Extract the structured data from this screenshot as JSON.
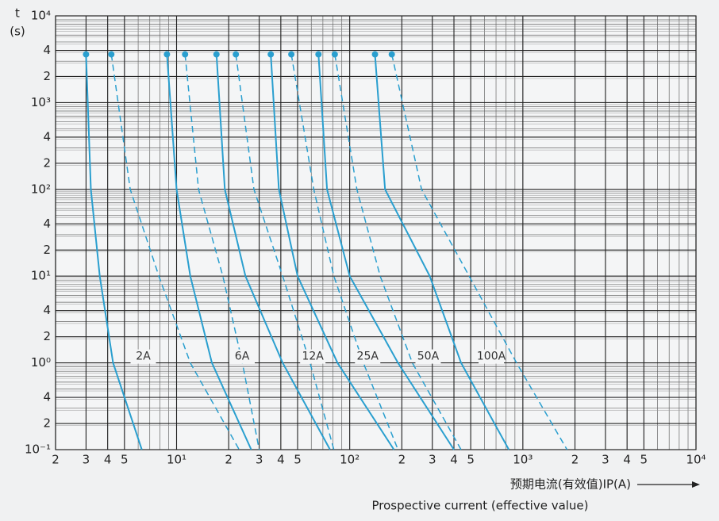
{
  "chart_data": {
    "type": "line",
    "log_x": true,
    "log_y": true,
    "grid": true,
    "y_label": "t",
    "y_unit": "(s)",
    "x_label": "预期电流(有效值)IP(A)",
    "x_label_2": "Prospective current (effective value)",
    "xlim": [
      2,
      10000
    ],
    "ylim": [
      0.1,
      10000
    ],
    "xticks": [
      2,
      3,
      4,
      5,
      {
        "value": 10,
        "label": "10¹"
      },
      {
        "value": 20,
        "label": "2"
      },
      {
        "value": 30,
        "label": "3"
      },
      {
        "value": 40,
        "label": "4"
      },
      {
        "value": 50,
        "label": "5"
      },
      {
        "value": 100,
        "label": "10²"
      },
      {
        "value": 200,
        "label": "2"
      },
      {
        "value": 300,
        "label": "3"
      },
      {
        "value": 400,
        "label": "4"
      },
      {
        "value": 500,
        "label": "5"
      },
      {
        "value": 1000,
        "label": "10³"
      },
      {
        "value": 2000,
        "label": "2"
      },
      {
        "value": 3000,
        "label": "3"
      },
      {
        "value": 4000,
        "label": "4"
      },
      {
        "value": 5000,
        "label": "5"
      },
      {
        "value": 10000,
        "label": "10⁴"
      }
    ],
    "yticks": [
      {
        "value": 10000,
        "label": "10⁴"
      },
      {
        "value": 4000,
        "label": "4"
      },
      {
        "value": 2000,
        "label": "2"
      },
      {
        "value": 1000,
        "label": "10³"
      },
      {
        "value": 400,
        "label": "4"
      },
      {
        "value": 200,
        "label": "2"
      },
      {
        "value": 100,
        "label": "10²"
      },
      {
        "value": 40,
        "label": "4"
      },
      {
        "value": 20,
        "label": "2"
      },
      {
        "value": 10,
        "label": "10¹"
      },
      4,
      2,
      {
        "value": 1,
        "label": "10⁰"
      },
      {
        "value": 0.4,
        "label": "4"
      },
      {
        "value": 0.2,
        "label": "2"
      },
      {
        "value": 0.1,
        "label": "10⁻¹"
      }
    ],
    "series": [
      {
        "name": "2A",
        "color": "#2a9fcf",
        "solid": {
          "x": [
            3.0,
            3.2,
            3.6,
            4.3,
            6.3
          ],
          "values": [
            3600,
            100,
            10,
            1,
            0.1
          ]
        },
        "dashed": {
          "x": [
            4.2,
            5.4,
            7.9,
            12,
            23
          ],
          "values": [
            3600,
            100,
            10,
            1,
            0.1
          ]
        }
      },
      {
        "name": "6A",
        "color": "#2a9fcf",
        "solid": {
          "x": [
            8.8,
            10,
            12,
            16,
            27
          ],
          "values": [
            3600,
            100,
            10,
            1,
            0.1
          ]
        },
        "dashed": {
          "x": [
            11.2,
            13.4,
            18.5,
            24,
            30
          ],
          "values": [
            3600,
            100,
            10,
            1,
            0.1
          ]
        }
      },
      {
        "name": "12A",
        "color": "#2a9fcf",
        "solid": {
          "x": [
            17,
            19,
            25,
            41,
            77
          ],
          "values": [
            3600,
            100,
            10,
            1,
            0.1
          ]
        },
        "dashed": {
          "x": [
            22,
            28,
            41,
            59,
            81
          ],
          "values": [
            3600,
            100,
            10,
            1,
            0.1
          ]
        }
      },
      {
        "name": "25A",
        "color": "#2a9fcf",
        "solid": {
          "x": [
            35,
            39,
            50,
            85,
            180
          ],
          "values": [
            3600,
            100,
            10,
            1,
            0.1
          ]
        },
        "dashed": {
          "x": [
            46,
            62,
            81,
            120,
            190
          ],
          "values": [
            3600,
            100,
            10,
            1,
            0.1
          ]
        }
      },
      {
        "name": "50A",
        "color": "#2a9fcf",
        "solid": {
          "x": [
            66,
            74,
            100,
            190,
            400
          ],
          "values": [
            3600,
            100,
            10,
            1,
            0.1
          ]
        },
        "dashed": {
          "x": [
            82,
            110,
            150,
            230,
            440
          ],
          "values": [
            3600,
            100,
            10,
            1,
            0.1
          ]
        }
      },
      {
        "name": "100A",
        "color": "#2a9fcf",
        "solid": {
          "x": [
            140,
            160,
            290,
            440,
            830
          ],
          "values": [
            3600,
            100,
            10,
            1,
            0.1
          ]
        },
        "dashed": {
          "x": [
            175,
            260,
            490,
            920,
            1800
          ],
          "values": [
            3600,
            100,
            10,
            1,
            0.1
          ]
        }
      }
    ]
  }
}
